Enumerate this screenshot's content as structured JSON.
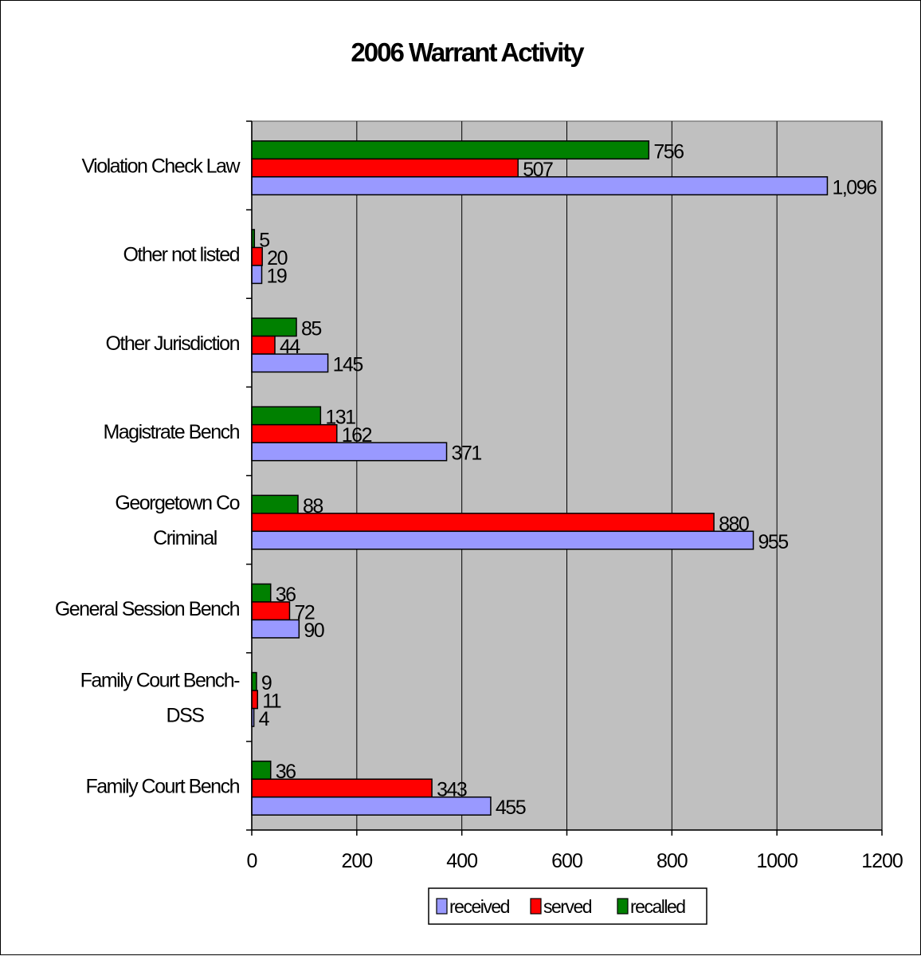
{
  "chart_data": {
    "type": "bar",
    "orientation": "horizontal",
    "title": "2006 Warrant Activity",
    "xlabel": "",
    "ylabel": "",
    "xlim": [
      0,
      1200
    ],
    "xticks": [
      0,
      200,
      400,
      600,
      800,
      1000,
      1200
    ],
    "grid": true,
    "legend_position": "bottom",
    "categories": [
      "Violation Check Law",
      "Other not listed",
      "Other Jurisdiction",
      "Magistrate Bench",
      "Georgetown Co Criminal",
      "General Session Bench",
      "Family Court Bench- DSS",
      "Family Court Bench"
    ],
    "category_lines": [
      [
        "Violation Check Law"
      ],
      [
        "Other not listed"
      ],
      [
        "Other Jurisdiction"
      ],
      [
        "Magistrate Bench"
      ],
      [
        "Georgetown Co",
        "Criminal"
      ],
      [
        "General Session Bench"
      ],
      [
        "Family Court Bench-",
        "DSS"
      ],
      [
        "Family Court Bench"
      ]
    ],
    "series": [
      {
        "name": "received",
        "color": "#9999ff",
        "values": [
          1096,
          19,
          145,
          371,
          955,
          90,
          4,
          455
        ],
        "labels": [
          "1,096",
          "19",
          "145",
          "371",
          "955",
          "90",
          "4",
          "455"
        ]
      },
      {
        "name": "served",
        "color": "#ff0000",
        "values": [
          507,
          20,
          44,
          162,
          880,
          72,
          11,
          343
        ],
        "labels": [
          "507",
          "20",
          "44",
          "162",
          "880",
          "72",
          "11",
          "343"
        ]
      },
      {
        "name": "recalled",
        "color": "#008000",
        "values": [
          756,
          5,
          85,
          131,
          88,
          36,
          9,
          36
        ],
        "labels": [
          "756",
          "5",
          "85",
          "131",
          "88",
          "36",
          "9",
          "36"
        ]
      }
    ],
    "plot_background": "#c0c0c0"
  }
}
